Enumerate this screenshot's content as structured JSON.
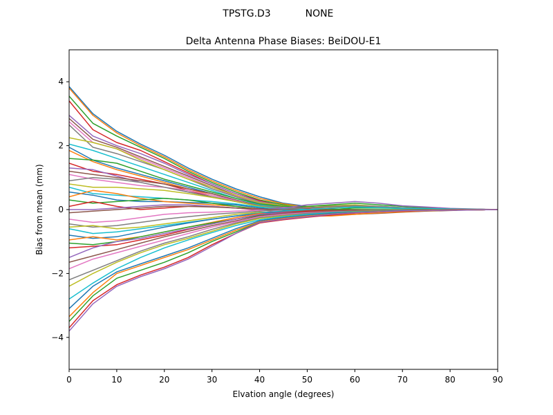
{
  "figure": {
    "suptitle_left": "TPSTG.D3",
    "suptitle_right": "NONE"
  },
  "colors": [
    "#1f77b4",
    "#ff7f0e",
    "#2ca02c",
    "#d62728",
    "#9467bd",
    "#8c564b",
    "#e377c2",
    "#7f7f7f",
    "#bcbd22",
    "#17becf"
  ],
  "chart_data": {
    "type": "line",
    "title": "Delta Antenna Phase Biases: BeiDOU-E1",
    "xlabel": "Elvation angle (degrees)",
    "ylabel": "Bias from mean (mm)",
    "xlim": [
      0,
      90
    ],
    "ylim": [
      -5,
      5
    ],
    "xticks": [
      0,
      10,
      20,
      30,
      40,
      50,
      60,
      70,
      80,
      90
    ],
    "yticks": [
      -4,
      -2,
      0,
      2,
      4
    ],
    "grid": false,
    "legend": "none",
    "x": [
      0,
      5,
      10,
      15,
      20,
      25,
      30,
      35,
      40,
      45,
      50,
      55,
      60,
      65,
      70,
      75,
      80,
      85,
      90
    ],
    "series": [
      {
        "values": [
          3.85,
          3.0,
          2.45,
          2.05,
          1.7,
          1.3,
          0.95,
          0.65,
          0.4,
          0.2,
          0.1,
          0.0,
          -0.05,
          -0.05,
          -0.05,
          -0.03,
          -0.02,
          -0.01,
          0.0
        ]
      },
      {
        "values": [
          3.8,
          2.95,
          2.4,
          2.0,
          1.65,
          1.25,
          0.9,
          0.6,
          0.35,
          0.18,
          0.08,
          0.0,
          -0.04,
          -0.05,
          -0.05,
          -0.03,
          -0.02,
          -0.01,
          0.0
        ]
      },
      {
        "values": [
          3.55,
          2.7,
          2.3,
          1.95,
          1.6,
          1.2,
          0.85,
          0.55,
          0.3,
          0.15,
          0.05,
          0.0,
          -0.03,
          -0.04,
          -0.04,
          -0.03,
          -0.02,
          -0.01,
          0.0
        ]
      },
      {
        "values": [
          3.4,
          2.5,
          2.1,
          1.85,
          1.5,
          1.15,
          0.8,
          0.5,
          0.28,
          0.1,
          0.02,
          -0.02,
          -0.05,
          -0.05,
          -0.04,
          -0.03,
          -0.02,
          -0.01,
          0.0
        ]
      },
      {
        "values": [
          2.95,
          2.3,
          2.0,
          1.75,
          1.45,
          1.1,
          0.8,
          0.5,
          0.25,
          0.12,
          0.05,
          0.0,
          -0.02,
          -0.03,
          -0.03,
          -0.02,
          -0.01,
          0.0,
          0.0
        ]
      },
      {
        "values": [
          2.85,
          2.2,
          1.95,
          1.65,
          1.35,
          1.05,
          0.75,
          0.45,
          0.22,
          0.1,
          0.05,
          0.02,
          0.0,
          -0.02,
          -0.02,
          -0.02,
          -0.01,
          0.0,
          0.0
        ]
      },
      {
        "values": [
          2.75,
          2.1,
          1.9,
          1.6,
          1.3,
          1.0,
          0.7,
          0.42,
          0.2,
          0.08,
          0.03,
          0.0,
          -0.02,
          -0.02,
          -0.02,
          -0.01,
          -0.01,
          0.0,
          0.0
        ]
      },
      {
        "values": [
          2.65,
          1.95,
          1.75,
          1.5,
          1.25,
          0.95,
          0.65,
          0.4,
          0.18,
          0.05,
          0.0,
          -0.03,
          -0.05,
          -0.05,
          -0.04,
          -0.03,
          -0.02,
          -0.01,
          0.0
        ]
      },
      {
        "values": [
          2.25,
          2.1,
          1.9,
          1.55,
          1.25,
          0.95,
          0.7,
          0.45,
          0.22,
          0.12,
          0.1,
          0.12,
          0.15,
          0.1,
          0.05,
          0.03,
          0.02,
          0.01,
          0.0
        ]
      },
      {
        "values": [
          2.05,
          1.85,
          1.6,
          1.35,
          1.1,
          0.85,
          0.6,
          0.35,
          0.15,
          0.05,
          0.0,
          -0.02,
          -0.03,
          -0.03,
          -0.03,
          -0.02,
          -0.01,
          0.0,
          0.0
        ]
      },
      {
        "values": [
          1.95,
          1.55,
          1.3,
          1.1,
          0.9,
          0.7,
          0.5,
          0.3,
          0.12,
          0.03,
          0.0,
          -0.02,
          -0.03,
          -0.03,
          -0.02,
          -0.02,
          -0.01,
          0.0,
          0.0
        ]
      },
      {
        "values": [
          1.85,
          1.5,
          1.25,
          1.05,
          0.85,
          0.65,
          0.45,
          0.28,
          0.12,
          0.05,
          0.05,
          0.08,
          0.1,
          0.08,
          0.05,
          0.03,
          0.02,
          0.01,
          0.0
        ]
      },
      {
        "values": [
          1.6,
          1.55,
          1.45,
          1.2,
          0.95,
          0.75,
          0.55,
          0.35,
          0.18,
          0.1,
          0.1,
          0.15,
          0.2,
          0.15,
          0.1,
          0.06,
          0.03,
          0.01,
          0.0
        ]
      },
      {
        "values": [
          1.45,
          1.2,
          1.1,
          0.95,
          0.8,
          0.6,
          0.4,
          0.25,
          0.1,
          0.05,
          0.02,
          0.0,
          -0.02,
          -0.02,
          -0.02,
          -0.01,
          -0.01,
          0.0,
          0.0
        ]
      },
      {
        "values": [
          1.3,
          1.25,
          1.05,
          0.85,
          0.7,
          0.55,
          0.4,
          0.25,
          0.1,
          0.02,
          -0.02,
          -0.05,
          -0.05,
          -0.05,
          -0.04,
          -0.03,
          -0.02,
          -0.01,
          0.0
        ]
      },
      {
        "values": [
          1.2,
          1.1,
          1.0,
          0.9,
          0.8,
          0.65,
          0.5,
          0.3,
          0.12,
          0.0,
          -0.1,
          -0.15,
          -0.15,
          -0.12,
          -0.08,
          -0.05,
          -0.03,
          -0.01,
          0.0
        ]
      },
      {
        "values": [
          1.1,
          0.95,
          0.85,
          0.75,
          0.7,
          0.6,
          0.45,
          0.28,
          0.1,
          0.0,
          -0.05,
          -0.08,
          -0.08,
          -0.06,
          -0.05,
          -0.03,
          -0.02,
          -0.01,
          0.0
        ]
      },
      {
        "values": [
          0.9,
          1.0,
          0.95,
          0.85,
          0.7,
          0.55,
          0.4,
          0.25,
          0.12,
          0.05,
          0.05,
          0.1,
          0.12,
          0.1,
          0.06,
          0.04,
          0.02,
          0.01,
          0.0
        ]
      },
      {
        "values": [
          0.8,
          0.7,
          0.7,
          0.65,
          0.6,
          0.5,
          0.38,
          0.25,
          0.1,
          0.02,
          -0.02,
          -0.05,
          -0.05,
          -0.04,
          -0.03,
          -0.02,
          -0.01,
          0.0,
          0.0
        ]
      },
      {
        "values": [
          0.7,
          0.5,
          0.45,
          0.4,
          0.35,
          0.3,
          0.25,
          0.18,
          0.08,
          0.02,
          0.0,
          0.05,
          0.08,
          0.06,
          0.04,
          0.03,
          0.02,
          0.01,
          0.0
        ]
      },
      {
        "values": [
          0.55,
          0.45,
          0.3,
          0.25,
          0.25,
          0.22,
          0.2,
          0.15,
          0.05,
          -0.02,
          -0.05,
          -0.05,
          -0.05,
          -0.04,
          -0.03,
          -0.02,
          -0.01,
          0.0,
          0.0
        ]
      },
      {
        "values": [
          0.4,
          0.6,
          0.5,
          0.35,
          0.25,
          0.2,
          0.15,
          0.1,
          0.02,
          -0.05,
          -0.08,
          -0.08,
          -0.06,
          -0.05,
          -0.04,
          -0.03,
          -0.02,
          -0.01,
          0.0
        ]
      },
      {
        "values": [
          0.3,
          0.2,
          0.25,
          0.3,
          0.35,
          0.3,
          0.2,
          0.1,
          0.0,
          -0.05,
          -0.05,
          0.0,
          0.05,
          0.05,
          0.04,
          0.03,
          0.02,
          0.01,
          0.0
        ]
      },
      {
        "values": [
          0.1,
          0.25,
          0.1,
          0.0,
          0.05,
          0.1,
          0.1,
          0.05,
          -0.02,
          -0.08,
          -0.1,
          -0.1,
          -0.08,
          -0.06,
          -0.04,
          -0.03,
          -0.02,
          -0.01,
          0.0
        ]
      },
      {
        "values": [
          0.0,
          0.0,
          0.05,
          0.1,
          0.15,
          0.15,
          0.1,
          0.05,
          0.0,
          0.05,
          0.15,
          0.2,
          0.25,
          0.2,
          0.12,
          0.08,
          0.04,
          0.02,
          0.0
        ]
      },
      {
        "values": [
          -0.1,
          -0.05,
          0.0,
          0.05,
          0.1,
          0.1,
          0.08,
          0.05,
          0.02,
          0.0,
          -0.02,
          -0.05,
          -0.05,
          -0.04,
          -0.03,
          -0.02,
          -0.01,
          0.0,
          0.0
        ]
      },
      {
        "values": [
          -0.3,
          -0.4,
          -0.35,
          -0.25,
          -0.15,
          -0.1,
          -0.08,
          -0.05,
          -0.02,
          -0.05,
          -0.1,
          -0.12,
          -0.1,
          -0.08,
          -0.05,
          -0.03,
          -0.02,
          -0.01,
          0.0
        ]
      },
      {
        "values": [
          -0.45,
          -0.55,
          -0.5,
          -0.4,
          -0.3,
          -0.22,
          -0.15,
          -0.1,
          -0.05,
          0.0,
          0.05,
          0.1,
          0.12,
          0.1,
          0.06,
          0.04,
          0.02,
          0.01,
          0.0
        ]
      },
      {
        "values": [
          -0.55,
          -0.5,
          -0.6,
          -0.55,
          -0.45,
          -0.35,
          -0.25,
          -0.15,
          -0.08,
          -0.1,
          -0.15,
          -0.18,
          -0.15,
          -0.1,
          -0.07,
          -0.04,
          -0.02,
          -0.01,
          0.0
        ]
      },
      {
        "values": [
          -0.6,
          -0.75,
          -0.7,
          -0.6,
          -0.5,
          -0.4,
          -0.3,
          -0.2,
          -0.1,
          -0.05,
          0.0,
          0.05,
          0.08,
          0.06,
          0.04,
          0.03,
          0.02,
          0.01,
          0.0
        ]
      },
      {
        "values": [
          -0.8,
          -0.9,
          -0.85,
          -0.7,
          -0.55,
          -0.42,
          -0.3,
          -0.2,
          -0.12,
          -0.08,
          -0.05,
          -0.03,
          -0.02,
          -0.02,
          -0.01,
          -0.01,
          0.0,
          0.0,
          0.0
        ]
      },
      {
        "values": [
          -0.95,
          -0.85,
          -0.95,
          -0.85,
          -0.7,
          -0.55,
          -0.4,
          -0.25,
          -0.12,
          -0.15,
          -0.2,
          -0.2,
          -0.15,
          -0.1,
          -0.07,
          -0.04,
          -0.02,
          -0.01,
          0.0
        ]
      },
      {
        "values": [
          -1.05,
          -1.1,
          -1.0,
          -0.85,
          -0.7,
          -0.55,
          -0.42,
          -0.3,
          -0.18,
          -0.1,
          -0.05,
          -0.02,
          0.0,
          0.0,
          0.0,
          0.0,
          0.0,
          0.0,
          0.0
        ]
      },
      {
        "values": [
          -1.2,
          -1.15,
          -1.1,
          -0.95,
          -0.8,
          -0.62,
          -0.45,
          -0.3,
          -0.15,
          -0.08,
          -0.05,
          -0.03,
          -0.02,
          -0.02,
          -0.01,
          -0.01,
          0.0,
          0.0,
          0.0
        ]
      },
      {
        "values": [
          -1.5,
          -1.2,
          -1.0,
          -0.9,
          -0.75,
          -0.6,
          -0.45,
          -0.3,
          -0.15,
          -0.1,
          -0.08,
          -0.05,
          -0.03,
          -0.02,
          -0.02,
          -0.01,
          -0.01,
          0.0,
          0.0
        ]
      },
      {
        "values": [
          -1.65,
          -1.45,
          -1.25,
          -1.05,
          -0.85,
          -0.68,
          -0.5,
          -0.35,
          -0.2,
          -0.12,
          -0.08,
          -0.05,
          -0.03,
          -0.02,
          -0.02,
          -0.01,
          -0.01,
          0.0,
          0.0
        ]
      },
      {
        "values": [
          -1.85,
          -1.55,
          -1.35,
          -1.15,
          -0.95,
          -0.75,
          -0.55,
          -0.38,
          -0.22,
          -0.15,
          -0.1,
          -0.07,
          -0.05,
          -0.03,
          -0.02,
          -0.02,
          -0.01,
          0.0,
          0.0
        ]
      },
      {
        "values": [
          -2.2,
          -1.9,
          -1.6,
          -1.3,
          -1.05,
          -0.85,
          -0.62,
          -0.42,
          -0.25,
          -0.18,
          -0.12,
          -0.08,
          -0.05,
          -0.03,
          -0.02,
          -0.02,
          -0.01,
          0.0,
          0.0
        ]
      },
      {
        "values": [
          -2.4,
          -2.0,
          -1.65,
          -1.35,
          -1.1,
          -0.9,
          -0.68,
          -0.45,
          -0.28,
          -0.2,
          -0.15,
          -0.1,
          -0.06,
          -0.04,
          -0.03,
          -0.02,
          -0.01,
          0.0,
          0.0
        ]
      },
      {
        "values": [
          -2.8,
          -2.3,
          -1.85,
          -1.5,
          -1.2,
          -0.95,
          -0.72,
          -0.5,
          -0.32,
          -0.22,
          -0.15,
          -0.1,
          -0.07,
          -0.05,
          -0.03,
          -0.02,
          -0.01,
          0.0,
          0.0
        ]
      },
      {
        "values": [
          -3.1,
          -2.4,
          -1.95,
          -1.7,
          -1.45,
          -1.2,
          -0.9,
          -0.6,
          -0.35,
          -0.25,
          -0.18,
          -0.12,
          -0.08,
          -0.05,
          -0.03,
          -0.02,
          -0.01,
          0.0,
          0.0
        ]
      },
      {
        "values": [
          -3.35,
          -2.6,
          -2.0,
          -1.75,
          -1.5,
          -1.25,
          -0.95,
          -0.65,
          -0.38,
          -0.28,
          -0.2,
          -0.14,
          -0.09,
          -0.06,
          -0.04,
          -0.02,
          -0.01,
          0.0,
          0.0
        ]
      },
      {
        "values": [
          -3.5,
          -2.7,
          -2.15,
          -1.9,
          -1.65,
          -1.35,
          -1.0,
          -0.7,
          -0.4,
          -0.3,
          -0.22,
          -0.15,
          -0.1,
          -0.07,
          -0.04,
          -0.03,
          -0.02,
          -0.01,
          0.0
        ]
      },
      {
        "values": [
          -3.7,
          -2.85,
          -2.35,
          -2.05,
          -1.8,
          -1.5,
          -1.1,
          -0.75,
          -0.42,
          -0.32,
          -0.24,
          -0.17,
          -0.11,
          -0.07,
          -0.05,
          -0.03,
          -0.02,
          -0.01,
          0.0
        ]
      },
      {
        "values": [
          -3.8,
          -2.95,
          -2.4,
          -2.1,
          -1.85,
          -1.55,
          -1.15,
          -0.75,
          -0.4,
          -0.3,
          -0.22,
          -0.15,
          -0.1,
          -0.07,
          -0.04,
          -0.03,
          -0.02,
          -0.01,
          0.0
        ]
      }
    ]
  }
}
